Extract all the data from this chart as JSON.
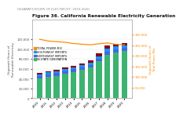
{
  "title": "Figure 36. California Renewable Electricity Generation",
  "subtitle": "GIGAWATT-HOURS OF ELECTRICITY, 2010-2020",
  "years": [
    2010,
    2011,
    2012,
    2013,
    2014,
    2015,
    2016,
    2017,
    2018,
    2019,
    2020
  ],
  "in_state": [
    40000,
    43000,
    46000,
    50000,
    54000,
    58000,
    63000,
    75000,
    89000,
    94000,
    97000
  ],
  "northwest_imports": [
    5000,
    5500,
    5500,
    5500,
    5000,
    5000,
    5000,
    5500,
    6500,
    6000,
    5500
  ],
  "southwest_imports": [
    3500,
    4000,
    4000,
    4500,
    4500,
    4500,
    5000,
    5500,
    6000,
    5500,
    5000
  ],
  "unspecified": [
    2500,
    3000,
    2500,
    3000,
    3000,
    3000,
    3500,
    5000,
    5500,
    5000,
    4500
  ],
  "total_power_mix": [
    278000,
    270000,
    267000,
    264000,
    258000,
    255000,
    252000,
    257000,
    261000,
    254000,
    252000
  ],
  "bar_colors": {
    "in_state": "#3cb371",
    "northwest_imports": "#4169e1",
    "southwest_imports": "#1e90ff",
    "unspecified": "#8b0000"
  },
  "line_color": "#ff8c00",
  "left_ylabel": "Gigawatt-Hours of\nRenewable Electricity",
  "right_ylabel": "Gigawatt-Hours of\nTotal Power Mix",
  "ylim_left": [
    0,
    160000
  ],
  "ylim_right": [
    0,
    370000
  ],
  "left_yticks": [
    0,
    20000,
    40000,
    60000,
    80000,
    100000,
    120000
  ],
  "left_ylabels": [
    "0",
    "20,000",
    "40,000",
    "60,000",
    "80,000",
    "100,000",
    "120,000"
  ],
  "right_yticks": [
    50000,
    100000,
    150000,
    200000,
    250000,
    300000
  ],
  "right_ylabels": [
    "50,000",
    "100,000",
    "150,000",
    "200,000",
    "250,000",
    "300,000"
  ],
  "legend_labels": [
    "TOTAL POWER MIX",
    "SOUTHWEST IMPORTS",
    "NORTHWEST IMPORTS",
    "IN-STATE GENERATION"
  ],
  "background_color": "#ffffff",
  "title_fontsize": 4.2,
  "subtitle_fontsize": 2.8,
  "tick_fontsize": 2.8,
  "legend_fontsize": 2.4
}
